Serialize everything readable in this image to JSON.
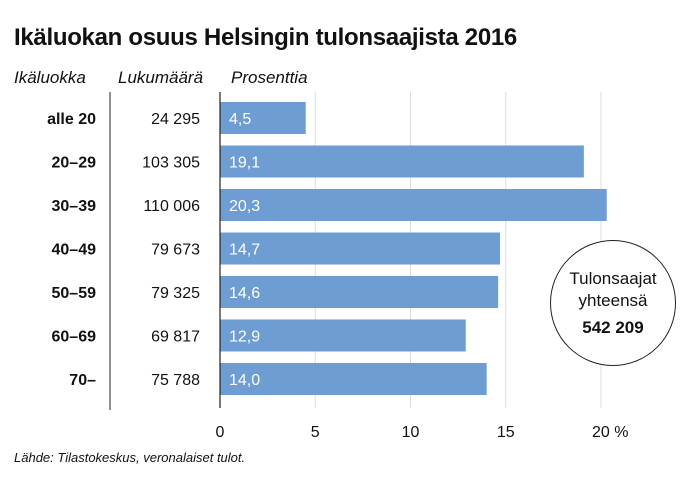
{
  "title": "Ikäluokan osuus Helsingin tulonsaajista 2016",
  "headers": {
    "age": "Ikäluokka",
    "count": "Lukumäärä",
    "percent": "Prosenttia"
  },
  "source": "Lähde: Tilastokeskus, veronalaiset tulot.",
  "total": {
    "label_line1": "Tulonsaajat",
    "label_line2": "yhteensä",
    "value": "542 209"
  },
  "colors": {
    "bar": "#6e9dd4",
    "bar_label": "#ffffff",
    "grid": "#dcdcdc",
    "axis": "#222222"
  },
  "chart_data": {
    "type": "bar",
    "orientation": "horizontal",
    "title": "Ikäluokan osuus Helsingin tulonsaajista 2016",
    "categories": [
      "alle 20",
      "20–29",
      "30–39",
      "40–49",
      "50–59",
      "60–69",
      "70–"
    ],
    "counts": [
      "24 295",
      "103 305",
      "110 006",
      "79 673",
      "79 325",
      "69 817",
      "75 788"
    ],
    "values": [
      4.5,
      19.1,
      20.3,
      14.7,
      14.6,
      12.9,
      14.0
    ],
    "value_labels": [
      "4,5",
      "19,1",
      "20,3",
      "14,7",
      "14,6",
      "12,9",
      "14,0"
    ],
    "xlim": [
      0,
      20
    ],
    "xticks": [
      0,
      5,
      10,
      15,
      20
    ],
    "xtick_labels": [
      "0",
      "5",
      "10",
      "15",
      "20 %"
    ],
    "grid": true
  }
}
